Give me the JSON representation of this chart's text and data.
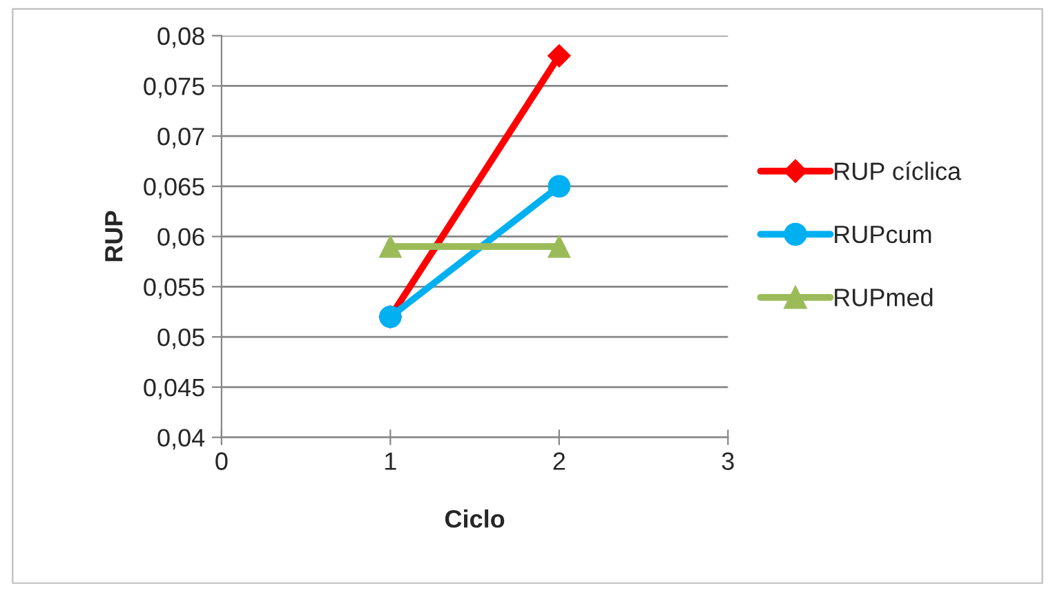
{
  "chart_data": {
    "type": "line",
    "xlabel": "Ciclo",
    "ylabel": "RUP",
    "x": [
      1,
      2
    ],
    "series": [
      {
        "name": "RUP cíclica",
        "color": "#ff0000",
        "values": [
          0.052,
          0.078
        ],
        "marker": "diamond"
      },
      {
        "name": "RUPcum",
        "color": "#00b0f0",
        "values": [
          0.052,
          0.065
        ],
        "marker": "circle"
      },
      {
        "name": "RUPmed",
        "color": "#9bbb59",
        "values": [
          0.059,
          0.059
        ],
        "marker": "triangle"
      }
    ],
    "xlim": [
      0,
      3
    ],
    "xticks": [
      0,
      1,
      2,
      3
    ],
    "ylim": [
      0.04,
      0.08
    ],
    "yticks": [
      {
        "value": 0.04,
        "label": "0,04"
      },
      {
        "value": 0.045,
        "label": "0,045"
      },
      {
        "value": 0.05,
        "label": "0,05"
      },
      {
        "value": 0.055,
        "label": "0,055"
      },
      {
        "value": 0.06,
        "label": "0,06"
      },
      {
        "value": 0.065,
        "label": "0,065"
      },
      {
        "value": 0.07,
        "label": "0,07"
      },
      {
        "value": 0.075,
        "label": "0,075"
      },
      {
        "value": 0.08,
        "label": "0,08"
      }
    ],
    "grid": "y",
    "legend": "right"
  }
}
